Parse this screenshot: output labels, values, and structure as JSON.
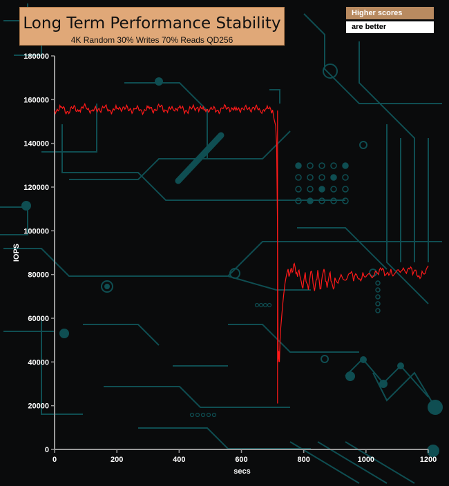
{
  "chart_data": {
    "type": "line",
    "title": "Long Term Performance Stability",
    "subtitle": "4K Random 30% Writes 70% Reads QD256",
    "xlabel": "secs",
    "ylabel": "IOPS",
    "xlim": [
      0,
      1200
    ],
    "ylim": [
      0,
      180000
    ],
    "x_ticks": [
      "0",
      "200",
      "400",
      "600",
      "800",
      "1000",
      "1200"
    ],
    "y_ticks": [
      "0",
      "20000",
      "40000",
      "60000",
      "80000",
      "100000",
      "120000",
      "140000",
      "160000",
      "180000"
    ],
    "grid": false,
    "series": [
      {
        "color": "#ff1a1a",
        "points": [
          [
            0,
            155000
          ],
          [
            20,
            156500
          ],
          [
            40,
            154500
          ],
          [
            60,
            156000
          ],
          [
            80,
            155200
          ],
          [
            100,
            156800
          ],
          [
            120,
            154800
          ],
          [
            140,
            155600
          ],
          [
            160,
            156300
          ],
          [
            180,
            154900
          ],
          [
            200,
            155800
          ],
          [
            220,
            156600
          ],
          [
            240,
            155100
          ],
          [
            260,
            155900
          ],
          [
            280,
            154700
          ],
          [
            300,
            156200
          ],
          [
            320,
            155400
          ],
          [
            340,
            156700
          ],
          [
            360,
            155000
          ],
          [
            380,
            155800
          ],
          [
            400,
            156400
          ],
          [
            420,
            154900
          ],
          [
            440,
            155700
          ],
          [
            460,
            156500
          ],
          [
            480,
            155200
          ],
          [
            500,
            156000
          ],
          [
            520,
            154800
          ],
          [
            540,
            155900
          ],
          [
            560,
            156300
          ],
          [
            580,
            155300
          ],
          [
            600,
            156100
          ],
          [
            620,
            155500
          ],
          [
            640,
            156400
          ],
          [
            660,
            155000
          ],
          [
            680,
            155800
          ],
          [
            700,
            155300
          ],
          [
            705,
            151000
          ],
          [
            710,
            148000
          ],
          [
            713,
            140000
          ],
          [
            716,
            100000
          ],
          [
            718,
            40000
          ],
          [
            720,
            45000
          ],
          [
            722,
            40000
          ],
          [
            724,
            50000
          ],
          [
            726,
            55000
          ],
          [
            730,
            62000
          ],
          [
            735,
            70000
          ],
          [
            740,
            76000
          ],
          [
            745,
            80000
          ],
          [
            750,
            82500
          ],
          [
            755,
            80000
          ],
          [
            760,
            83000
          ],
          [
            765,
            81500
          ],
          [
            770,
            85000
          ],
          [
            775,
            80500
          ],
          [
            780,
            79000
          ],
          [
            785,
            82000
          ],
          [
            790,
            78000
          ],
          [
            795,
            74500
          ],
          [
            800,
            77000
          ],
          [
            805,
            81000
          ],
          [
            810,
            76000
          ],
          [
            815,
            73000
          ],
          [
            820,
            78500
          ],
          [
            825,
            81500
          ],
          [
            830,
            76000
          ],
          [
            835,
            72500
          ],
          [
            840,
            77500
          ],
          [
            845,
            82000
          ],
          [
            850,
            77000
          ],
          [
            855,
            73500
          ],
          [
            860,
            79500
          ],
          [
            865,
            82500
          ],
          [
            870,
            77000
          ],
          [
            875,
            74000
          ],
          [
            880,
            78000
          ],
          [
            885,
            81000
          ],
          [
            890,
            76500
          ],
          [
            895,
            73500
          ],
          [
            900,
            78500
          ],
          [
            910,
            76000
          ],
          [
            920,
            80000
          ],
          [
            930,
            77500
          ],
          [
            940,
            78500
          ],
          [
            950,
            80500
          ],
          [
            960,
            77000
          ],
          [
            970,
            80000
          ],
          [
            980,
            78000
          ],
          [
            990,
            81000
          ],
          [
            1000,
            79000
          ],
          [
            1010,
            80500
          ],
          [
            1020,
            78500
          ],
          [
            1030,
            81500
          ],
          [
            1040,
            80000
          ],
          [
            1050,
            82000
          ],
          [
            1060,
            79500
          ],
          [
            1070,
            81000
          ],
          [
            1080,
            82500
          ],
          [
            1090,
            80000
          ],
          [
            1100,
            82000
          ],
          [
            1110,
            81000
          ],
          [
            1120,
            83000
          ],
          [
            1130,
            80500
          ],
          [
            1140,
            82500
          ],
          [
            1150,
            80000
          ],
          [
            1160,
            82000
          ],
          [
            1170,
            79500
          ],
          [
            1180,
            81500
          ],
          [
            1190,
            80500
          ],
          [
            1200,
            84000
          ]
        ]
      }
    ],
    "drop_line": {
      "x": 716,
      "y_from": 155000,
      "y_to": 21000,
      "color": "#ff1a1a"
    }
  },
  "legend_note": {
    "line1": "Higher scores",
    "line2": "are better"
  },
  "colors": {
    "background": "#0a0b0c",
    "circuit": "#0f4e52",
    "axis": "#9a9a9a",
    "title_box": "#e0a878"
  }
}
